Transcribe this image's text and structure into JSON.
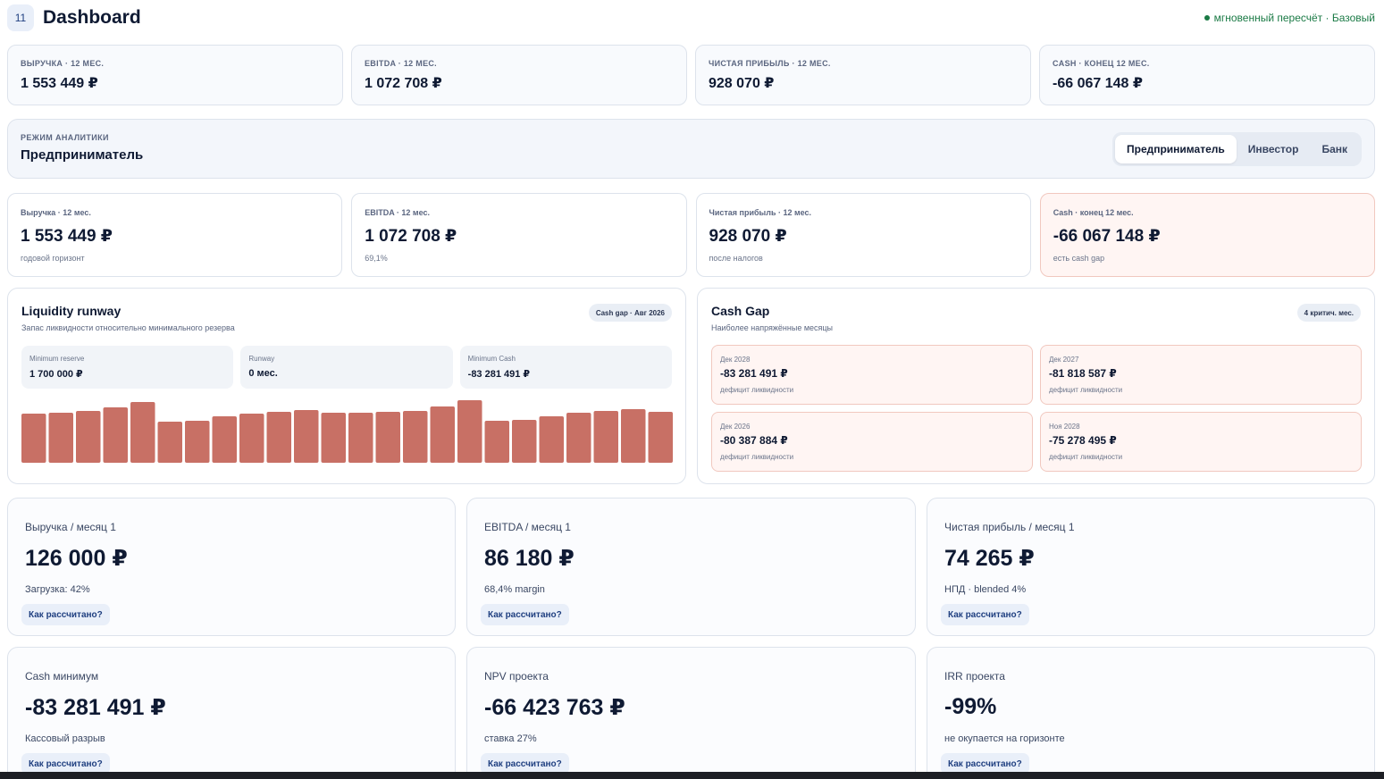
{
  "header": {
    "badge": "11",
    "title": "Dashboard",
    "status": "мгновенный пересчёт · Базовый"
  },
  "kpi_top": [
    {
      "label": "Выручка · 12 мес.",
      "value": "1 553 449 ₽"
    },
    {
      "label": "EBITDA · 12 мес.",
      "value": "1 072 708 ₽"
    },
    {
      "label": "Чистая прибыль · 12 мес.",
      "value": "928 070 ₽"
    },
    {
      "label": "Cash · конец 12 мес.",
      "value": "-66 067 148 ₽"
    }
  ],
  "mode": {
    "label": "Режим аналитики",
    "value": "Предприниматель",
    "tabs": [
      "Предприниматель",
      "Инвестор",
      "Банк"
    ],
    "active_tab": 0
  },
  "kpi_cards": [
    {
      "label": "Выручка · 12 мес.",
      "value": "1 553 449 ₽",
      "sub": "годовой горизонт"
    },
    {
      "label": "EBITDA · 12 мес.",
      "value": "1 072 708 ₽",
      "sub": "69,1%"
    },
    {
      "label": "Чистая прибыль · 12 мес.",
      "value": "928 070 ₽",
      "sub": "после налогов"
    },
    {
      "label": "Cash · конец 12 мес.",
      "value": "-66 067 148 ₽",
      "sub": "есть cash gap"
    }
  ],
  "liquidity": {
    "title": "Liquidity runway",
    "subtitle": "Запас ликвидности относительно минимального резерва",
    "pill": "Cash gap · Авг 2026",
    "minis": [
      {
        "label": "Minimum reserve",
        "value": "1 700 000 ₽"
      },
      {
        "label": "Runway",
        "value": "0 мес."
      },
      {
        "label": "Minimum Cash",
        "value": "-83 281 491 ₽"
      }
    ]
  },
  "chart_data": {
    "type": "bar",
    "bar_color": "#c87065",
    "values": [
      55,
      56,
      58,
      62,
      68,
      46,
      47,
      52,
      55,
      57,
      59,
      56,
      56,
      57,
      58,
      63,
      70,
      47,
      48,
      52,
      56,
      58,
      60,
      57
    ],
    "ylim": [
      0,
      77
    ]
  },
  "cash_gap": {
    "title": "Cash Gap",
    "subtitle": "Наиболее напряжённые месяцы",
    "pill": "4 критич. мес.",
    "items": [
      {
        "month": "Дек 2028",
        "value": "-83 281 491 ₽",
        "sub": "дефицит ликвидности"
      },
      {
        "month": "Дек 2027",
        "value": "-81 818 587 ₽",
        "sub": "дефицит ликвидности"
      },
      {
        "month": "Дек 2026",
        "value": "-80 387 884 ₽",
        "sub": "дефицит ликвидности"
      },
      {
        "month": "Ноя 2028",
        "value": "-75 278 495 ₽",
        "sub": "дефицит ликвидности"
      }
    ]
  },
  "metrics": [
    {
      "label": "Выручка / месяц 1",
      "value": "126 000 ₽",
      "sub": "Загрузка: 42%",
      "action": "Как рассчитано?"
    },
    {
      "label": "EBITDA / месяц 1",
      "value": "86 180 ₽",
      "sub": "68,4% margin",
      "action": "Как рассчитано?"
    },
    {
      "label": "Чистая прибыль / месяц 1",
      "value": "74 265 ₽",
      "sub": "НПД · blended 4%",
      "action": "Как рассчитано?"
    },
    {
      "label": "Cash минимум",
      "value": "-83 281 491 ₽",
      "sub": "Кассовый разрыв",
      "action": "Как рассчитано?"
    },
    {
      "label": "NPV проекта",
      "value": "-66 423 763 ₽",
      "sub": "ставка 27%",
      "action": "Как рассчитано?"
    },
    {
      "label": "IRR проекта",
      "value": "-99%",
      "sub": "не окупается на горизонте",
      "action": "Как рассчитано?"
    }
  ]
}
